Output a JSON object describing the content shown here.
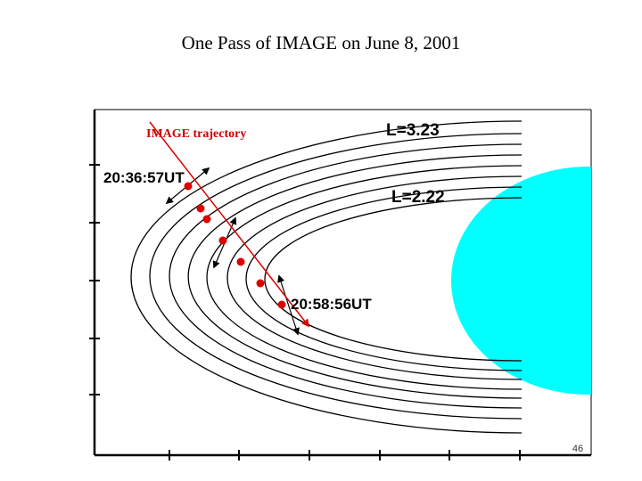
{
  "slide": {
    "title": "One Pass of IMAGE on June 8, 2001",
    "page_number": "46"
  },
  "diagram": {
    "trajectory_label": "IMAGE trajectory",
    "start_time_label": "20:36:57UT",
    "end_time_label": "20:58:56UT",
    "outer_l_label": "L=3.23",
    "inner_l_label": "L=2.22",
    "colors": {
      "earth": "#00ffff",
      "trajectory": "#dd0000",
      "field_lines": "#000000",
      "trajectory_label": "#cc0000"
    }
  }
}
